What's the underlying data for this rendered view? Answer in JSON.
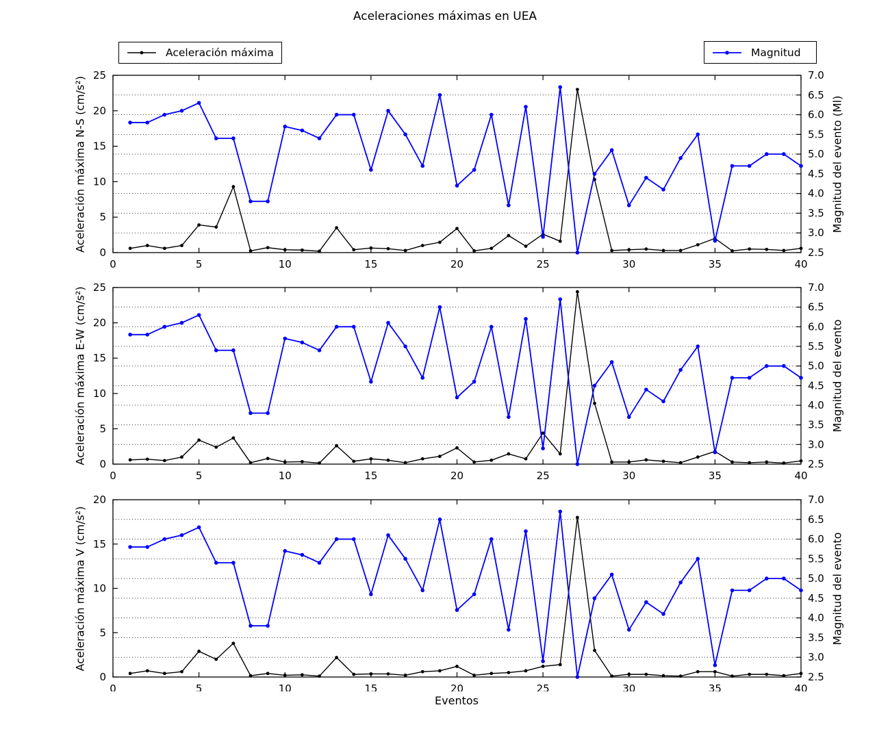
{
  "figure": {
    "title": "Aceleraciones máximas en UEA",
    "xlabel": "Eventos"
  },
  "legend": [
    {
      "label": "Aceleración máxima",
      "color": "#000000"
    },
    {
      "label": "Magnitud",
      "color": "#0000ff"
    }
  ],
  "chart_data": {
    "type": "line",
    "title": "Aceleraciones máximas en UEA",
    "xlabel": "Eventos",
    "legend_position": "top, outside axes (left and right)",
    "grid": "horizontal dotted lines at right-axis ticks",
    "x": [
      1,
      2,
      3,
      4,
      5,
      6,
      7,
      8,
      9,
      10,
      11,
      12,
      13,
      14,
      15,
      16,
      17,
      18,
      19,
      20,
      21,
      22,
      23,
      24,
      25,
      26,
      27,
      28,
      29,
      30,
      31,
      32,
      33,
      34,
      35,
      36,
      37,
      38,
      39,
      40
    ],
    "subplots": [
      {
        "ylabel_left": "Aceleración máxima N-S (cm/s²)",
        "ylabel_right": "Magnitud del evento (Ml)",
        "ylim_left": [
          0,
          25
        ],
        "yticks_left": [
          0,
          5,
          10,
          15,
          20,
          25
        ],
        "ylim_right": [
          2.5,
          7.0
        ],
        "yticks_right": [
          "2.5",
          "3.0",
          "3.5",
          "4.0",
          "4.5",
          "5.0",
          "5.5",
          "6.0",
          "6.5",
          "7.0"
        ],
        "xlim": [
          0,
          40
        ],
        "xticks": [
          0,
          5,
          10,
          15,
          20,
          25,
          30,
          35,
          40
        ],
        "series": [
          {
            "name": "Aceleración máxima",
            "axis": "left",
            "color": "#000000",
            "marker": "circle",
            "values": [
              0.6,
              1.0,
              0.6,
              1.0,
              3.9,
              3.6,
              9.3,
              0.25,
              0.7,
              0.4,
              0.35,
              0.2,
              3.5,
              0.4,
              0.65,
              0.55,
              0.3,
              1.0,
              1.45,
              3.4,
              0.25,
              0.6,
              2.4,
              0.9,
              2.6,
              1.6,
              23.0,
              10.3,
              0.3,
              0.4,
              0.5,
              0.3,
              0.3,
              1.1,
              2.0,
              0.25,
              0.5,
              0.45,
              0.3,
              0.6
            ]
          },
          {
            "name": "Magnitud",
            "axis": "right",
            "color": "#0000ff",
            "marker": "circle",
            "values": [
              5.8,
              5.8,
              6.0,
              6.1,
              6.3,
              5.4,
              5.4,
              3.8,
              3.8,
              5.7,
              5.6,
              5.4,
              6.0,
              6.0,
              4.6,
              6.1,
              5.5,
              4.7,
              6.5,
              4.2,
              4.6,
              6.0,
              3.7,
              6.2,
              2.9,
              6.7,
              2.5,
              4.5,
              5.1,
              3.7,
              4.4,
              4.1,
              4.9,
              5.5,
              2.8,
              4.7,
              4.7,
              5.0,
              5.0,
              4.7
            ]
          }
        ]
      },
      {
        "ylabel_left": "Aceleración máxima E-W (cm/s²)",
        "ylabel_right": "Magnitud del evento",
        "ylim_left": [
          0,
          25
        ],
        "yticks_left": [
          0,
          5,
          10,
          15,
          20,
          25
        ],
        "ylim_right": [
          2.5,
          7.0
        ],
        "yticks_right": [
          "2.5",
          "3.0",
          "3.5",
          "4.0",
          "4.5",
          "5.0",
          "5.5",
          "6.0",
          "6.5",
          "7.0"
        ],
        "xlim": [
          0,
          40
        ],
        "xticks": [
          0,
          5,
          10,
          15,
          20,
          25,
          30,
          35,
          40
        ],
        "series": [
          {
            "name": "Aceleración máxima",
            "axis": "left",
            "color": "#000000",
            "marker": "circle",
            "values": [
              0.6,
              0.7,
              0.5,
              1.0,
              3.4,
              2.4,
              3.7,
              0.2,
              0.8,
              0.3,
              0.35,
              0.15,
              2.6,
              0.4,
              0.75,
              0.55,
              0.2,
              0.75,
              1.1,
              2.3,
              0.3,
              0.55,
              1.45,
              0.75,
              4.4,
              1.45,
              24.4,
              8.6,
              0.3,
              0.3,
              0.6,
              0.4,
              0.2,
              1.0,
              1.8,
              0.3,
              0.2,
              0.3,
              0.15,
              0.45
            ]
          },
          {
            "name": "Magnitud",
            "axis": "right",
            "color": "#0000ff",
            "marker": "circle",
            "values": [
              5.8,
              5.8,
              6.0,
              6.1,
              6.3,
              5.4,
              5.4,
              3.8,
              3.8,
              5.7,
              5.6,
              5.4,
              6.0,
              6.0,
              4.6,
              6.1,
              5.5,
              4.7,
              6.5,
              4.2,
              4.6,
              6.0,
              3.7,
              6.2,
              2.9,
              6.7,
              2.5,
              4.5,
              5.1,
              3.7,
              4.4,
              4.1,
              4.9,
              5.5,
              2.8,
              4.7,
              4.7,
              5.0,
              5.0,
              4.7
            ]
          }
        ]
      },
      {
        "ylabel_left": "Aceleración máxima V (cm/s²)",
        "ylabel_right": "Magnitud del evento",
        "ylim_left": [
          0,
          20
        ],
        "yticks_left": [
          0,
          5,
          10,
          15,
          20
        ],
        "ylim_right": [
          2.5,
          7.0
        ],
        "yticks_right": [
          "2.5",
          "3.0",
          "3.5",
          "4.0",
          "4.5",
          "5.0",
          "5.5",
          "6.0",
          "6.5",
          "7.0"
        ],
        "xlim": [
          0,
          40
        ],
        "xticks": [
          0,
          5,
          10,
          15,
          20,
          25,
          30,
          35,
          40
        ],
        "series": [
          {
            "name": "Aceleración máxima",
            "axis": "left",
            "color": "#000000",
            "marker": "circle",
            "values": [
              0.4,
              0.7,
              0.4,
              0.6,
              2.9,
              2.0,
              3.8,
              0.15,
              0.4,
              0.2,
              0.25,
              0.1,
              2.2,
              0.3,
              0.35,
              0.35,
              0.2,
              0.6,
              0.7,
              1.2,
              0.2,
              0.4,
              0.5,
              0.7,
              1.2,
              1.4,
              18.0,
              3.0,
              0.1,
              0.3,
              0.3,
              0.15,
              0.1,
              0.6,
              0.6,
              0.1,
              0.3,
              0.3,
              0.15,
              0.4
            ]
          },
          {
            "name": "Magnitud",
            "axis": "right",
            "color": "#0000ff",
            "marker": "circle",
            "values": [
              5.8,
              5.8,
              6.0,
              6.1,
              6.3,
              5.4,
              5.4,
              3.8,
              3.8,
              5.7,
              5.6,
              5.4,
              6.0,
              6.0,
              4.6,
              6.1,
              5.5,
              4.7,
              6.5,
              4.2,
              4.6,
              6.0,
              3.7,
              6.2,
              2.9,
              6.7,
              2.5,
              4.5,
              5.1,
              3.7,
              4.4,
              4.1,
              4.9,
              5.5,
              2.8,
              4.7,
              4.7,
              5.0,
              5.0,
              4.7
            ]
          }
        ]
      }
    ]
  }
}
